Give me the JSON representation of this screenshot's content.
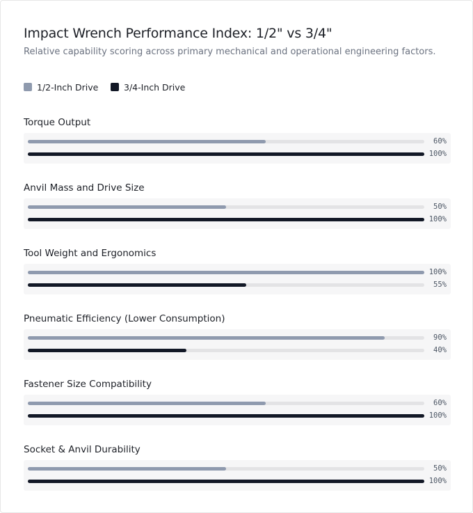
{
  "chart_data": {
    "type": "bar",
    "title": "Impact Wrench Performance Index: 1/2\" vs 3/4\"",
    "subtitle": "Relative capability scoring across primary mechanical and operational engineering factors.",
    "categories": [
      "Torque Output",
      "Anvil Mass and Drive Size",
      "Tool Weight and Ergonomics",
      "Pneumatic Efficiency (Lower Consumption)",
      "Fastener Size Compatibility",
      "Socket & Anvil Durability"
    ],
    "series": [
      {
        "name": "1/2-Inch Drive",
        "values": [
          60,
          50,
          100,
          90,
          60,
          50
        ]
      },
      {
        "name": "3/4-Inch Drive",
        "values": [
          100,
          100,
          55,
          40,
          100,
          100
        ]
      }
    ],
    "value_labels": [
      [
        "60%",
        "50%",
        "100%",
        "90%",
        "60%",
        "50%"
      ],
      [
        "100%",
        "100%",
        "55%",
        "40%",
        "100%",
        "100%"
      ]
    ],
    "ylim": [
      0,
      100
    ],
    "orientation": "horizontal",
    "legend": "top-left",
    "grid": false
  },
  "colors": {
    "series_1": "#8f9aae",
    "series_2": "#121826",
    "track": "#e3e3e5",
    "panel": "#f6f6f7"
  }
}
